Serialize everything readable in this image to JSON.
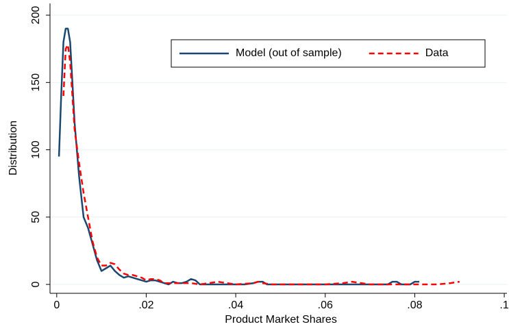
{
  "chart_data": {
    "type": "line",
    "xlabel": "Product Market Shares",
    "ylabel": "Distribution",
    "xlim": [
      -0.0015,
      0.1006
    ],
    "ylim": [
      -6.6,
      208.7
    ],
    "xticks": [
      0,
      {
        "value": 0.02,
        "label": ".02"
      },
      {
        "value": 0.04,
        "label": ".04"
      },
      {
        "value": 0.06,
        "label": ".06"
      },
      {
        "value": 0.08,
        "label": ".08"
      },
      {
        "value": 0.1,
        "label": ".1"
      }
    ],
    "yticks": [
      0,
      50,
      100,
      150,
      200
    ],
    "grid": true,
    "legend": "top-right",
    "series": [
      {
        "name": "Model (out of sample)",
        "color": "#1a476f",
        "dash": "solid",
        "x": [
          0.0005,
          0.001,
          0.0015,
          0.002,
          0.0025,
          0.003,
          0.0035,
          0.004,
          0.005,
          0.006,
          0.007,
          0.008,
          0.009,
          0.01,
          0.011,
          0.012,
          0.013,
          0.014,
          0.015,
          0.016,
          0.017,
          0.018,
          0.019,
          0.02,
          0.021,
          0.022,
          0.023,
          0.024,
          0.025,
          0.026,
          0.027,
          0.028,
          0.029,
          0.03,
          0.031,
          0.032,
          0.034,
          0.036,
          0.038,
          0.04,
          0.042,
          0.044,
          0.045,
          0.046,
          0.047,
          0.05,
          0.055,
          0.06,
          0.065,
          0.07,
          0.074,
          0.075,
          0.076,
          0.077,
          0.079,
          0.08,
          0.081
        ],
        "values": [
          95,
          140,
          180,
          190,
          190,
          180,
          150,
          120,
          80,
          50,
          42,
          30,
          18,
          10,
          12,
          14,
          10,
          7,
          5,
          6,
          5,
          4,
          3,
          2,
          3,
          3,
          2,
          1,
          0,
          2,
          1,
          1,
          2,
          4,
          3,
          0,
          0,
          0,
          0,
          0,
          0,
          1,
          2,
          2,
          0,
          0,
          0,
          0,
          0,
          0,
          0,
          2,
          2,
          0,
          0,
          2,
          2
        ]
      },
      {
        "name": "Data",
        "color": "#ff0000",
        "dash": "dashed",
        "x": [
          0.0015,
          0.002,
          0.0025,
          0.003,
          0.0035,
          0.004,
          0.005,
          0.006,
          0.007,
          0.008,
          0.009,
          0.01,
          0.011,
          0.012,
          0.013,
          0.014,
          0.015,
          0.016,
          0.017,
          0.018,
          0.019,
          0.02,
          0.021,
          0.022,
          0.023,
          0.024,
          0.026,
          0.028,
          0.03,
          0.032,
          0.034,
          0.036,
          0.038,
          0.04,
          0.044,
          0.045,
          0.046,
          0.048,
          0.055,
          0.06,
          0.064,
          0.066,
          0.068,
          0.07,
          0.08,
          0.085,
          0.088,
          0.09
        ],
        "values": [
          140,
          175,
          178,
          165,
          140,
          115,
          90,
          68,
          50,
          32,
          20,
          14,
          14,
          16,
          15,
          11,
          8,
          7,
          7,
          6,
          5,
          3,
          4,
          4,
          3,
          1,
          1,
          1,
          1,
          0,
          1,
          2,
          1,
          0,
          1,
          2,
          1,
          0,
          0,
          0,
          1,
          2,
          1,
          0,
          0,
          0,
          1,
          2
        ]
      }
    ]
  }
}
